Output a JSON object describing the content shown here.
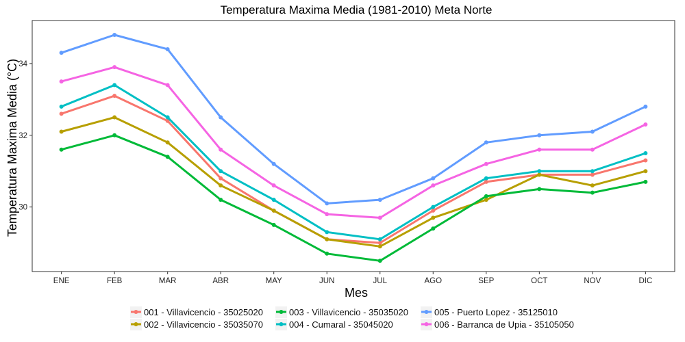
{
  "chart_data": {
    "type": "line",
    "title": "Temperatura Maxima Media (1981-2010)  Meta Norte",
    "xlabel": "Mes",
    "ylabel": "Temperatura Maxima Media  (°C)",
    "categories": [
      "ENE",
      "FEB",
      "MAR",
      "ABR",
      "MAY",
      "JUN",
      "JUL",
      "AGO",
      "SEP",
      "OCT",
      "NOV",
      "DIC"
    ],
    "ylim": [
      28.2,
      35.2
    ],
    "yticks": [
      30,
      32,
      34
    ],
    "grid": false,
    "legend_position": "bottom",
    "series": [
      {
        "name": "001 - Villavicencio - 35025020",
        "color": "#F8766D",
        "values": [
          32.6,
          33.1,
          32.4,
          30.8,
          29.9,
          29.1,
          29.0,
          29.9,
          30.7,
          30.9,
          30.9,
          31.3
        ]
      },
      {
        "name": "002 - Villavicencio - 35035070",
        "color": "#B79F00",
        "values": [
          32.1,
          32.5,
          31.8,
          30.6,
          29.9,
          29.1,
          28.9,
          29.7,
          30.2,
          30.9,
          30.6,
          31.0
        ]
      },
      {
        "name": "003 - Villavicencio - 35035020",
        "color": "#00BA38",
        "values": [
          31.6,
          32.0,
          31.4,
          30.2,
          29.5,
          28.7,
          28.5,
          29.4,
          30.3,
          30.5,
          30.4,
          30.7
        ]
      },
      {
        "name": "004 - Cumaral - 35045020",
        "color": "#00BFC4",
        "values": [
          32.8,
          33.4,
          32.5,
          31.0,
          30.2,
          29.3,
          29.1,
          30.0,
          30.8,
          31.0,
          31.0,
          31.5
        ]
      },
      {
        "name": "005 - Puerto Lopez - 35125010",
        "color": "#619CFF",
        "values": [
          34.3,
          34.8,
          34.4,
          32.5,
          31.2,
          30.1,
          30.2,
          30.8,
          31.8,
          32.0,
          32.1,
          32.8
        ]
      },
      {
        "name": "006 - Barranca de Upia - 35105050",
        "color": "#F564E3",
        "values": [
          33.5,
          33.9,
          33.4,
          31.6,
          30.6,
          29.8,
          29.7,
          30.6,
          31.2,
          31.6,
          31.6,
          32.3
        ]
      }
    ]
  }
}
